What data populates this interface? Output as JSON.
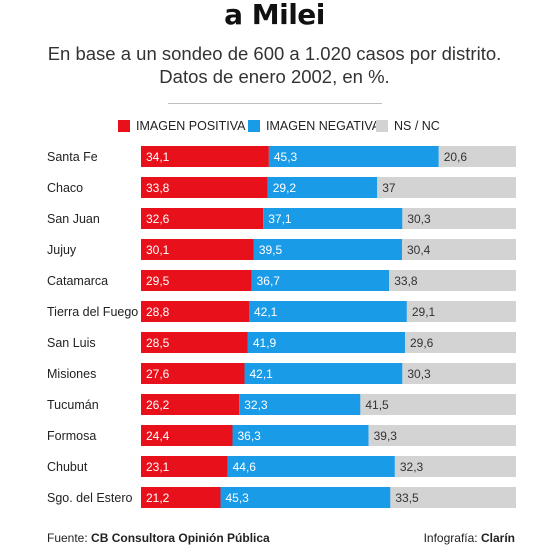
{
  "title": "a Milei",
  "subtitle": [
    "En base a un sondeo de 600 a 1.020 casos por distrito.",
    "Datos de enero 2002, en %."
  ],
  "colors": {
    "positiva": "#e8101a",
    "negativa": "#1a9be8",
    "nsnc": "#d3d3d3"
  },
  "footer": {
    "source_label": "Fuente:",
    "source_name": "CB Consultora Opinión Pública",
    "credit_label": "Infografía:",
    "credit_name": "Clarín"
  },
  "chart_data": {
    "type": "bar",
    "stacked": true,
    "orientation": "horizontal",
    "categories": [
      "Santa Fe",
      "Chaco",
      "San Juan",
      "Jujuy",
      "Catamarca",
      "Tierra del Fuego",
      "San Luis",
      "Misiones",
      "Tucumán",
      "Formosa",
      "Chubut",
      "Sgo. del Estero"
    ],
    "series": [
      {
        "name": "IMAGEN POSITIVA",
        "labels": [
          "34,1",
          "33,8",
          "32,6",
          "30,1",
          "29,5",
          "28,8",
          "28,5",
          "27,6",
          "26,2",
          "24,4",
          "23,1",
          "21,2"
        ],
        "values": [
          34.1,
          33.8,
          32.6,
          30.1,
          29.5,
          28.8,
          28.5,
          27.6,
          26.2,
          24.4,
          23.1,
          21.2
        ]
      },
      {
        "name": "IMAGEN NEGATIVA",
        "labels": [
          "45,3",
          "29,2",
          "37,1",
          "39,5",
          "36,7",
          "42,1",
          "41,9",
          "42,1",
          "32,3",
          "36,3",
          "44,6",
          "45,3"
        ],
        "values": [
          45.3,
          29.2,
          37.1,
          39.5,
          36.7,
          42.1,
          41.9,
          42.1,
          32.3,
          36.3,
          44.6,
          45.3
        ]
      },
      {
        "name": "NS / NC",
        "labels": [
          "20,6",
          "37",
          "30,3",
          "30,4",
          "33,8",
          "29,1",
          "29,6",
          "30,3",
          "41,5",
          "39,3",
          "32,3",
          "33,5"
        ],
        "values": [
          20.6,
          37,
          30.3,
          30.4,
          33.8,
          29.1,
          29.6,
          30.3,
          41.5,
          39.3,
          32.3,
          33.5
        ]
      }
    ],
    "xlim": [
      0,
      100
    ],
    "legend": "top-center",
    "grid": false
  }
}
